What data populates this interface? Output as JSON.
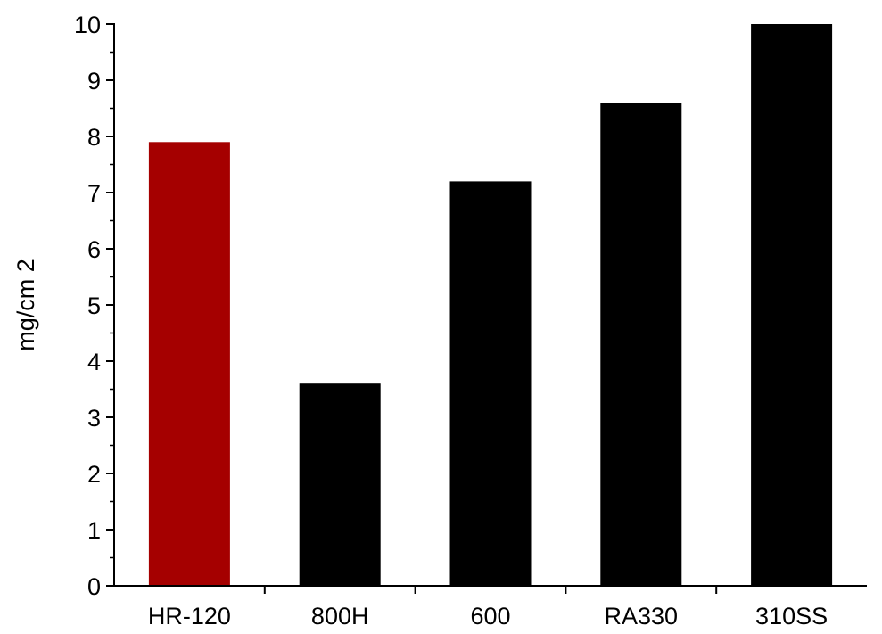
{
  "chart_data": {
    "type": "bar",
    "title": "",
    "xlabel": "",
    "ylabel": "mg/cm 2",
    "categories": [
      "HR-120",
      "800H",
      "600",
      "RA330",
      "310SS"
    ],
    "values": [
      7.9,
      3.6,
      7.2,
      8.6,
      10
    ],
    "bar_colors": [
      "#a50000",
      "#000000",
      "#000000",
      "#000000",
      "#000000"
    ],
    "ylim": [
      0,
      10
    ],
    "yticks": [
      0,
      1,
      2,
      3,
      4,
      5,
      6,
      7,
      8,
      9,
      10
    ],
    "grid": false,
    "legend": "none"
  }
}
